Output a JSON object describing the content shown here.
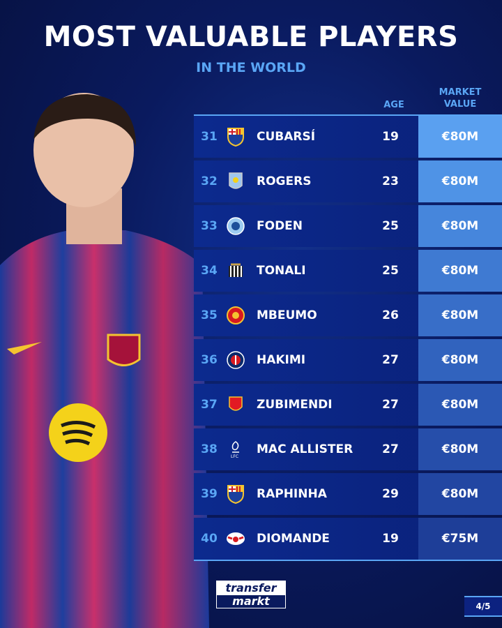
{
  "header": {
    "title": "MOST VALUABLE PLAYERS",
    "subtitle": "IN THE WORLD"
  },
  "columns": {
    "age": "AGE",
    "market_value_line1": "MARKET",
    "market_value_line2": "VALUE"
  },
  "rows": [
    {
      "rank": "31",
      "club": "fc-barcelona",
      "name": "CUBARSÍ",
      "age": "19",
      "value": "€80M",
      "value_color": "#5aa0f0"
    },
    {
      "rank": "32",
      "club": "aston-villa",
      "name": "ROGERS",
      "age": "23",
      "value": "€80M",
      "value_color": "#4f93e6"
    },
    {
      "rank": "33",
      "club": "manchester-city",
      "name": "FODEN",
      "age": "25",
      "value": "€80M",
      "value_color": "#4686dc"
    },
    {
      "rank": "34",
      "club": "newcastle-united",
      "name": "TONALI",
      "age": "25",
      "value": "€80M",
      "value_color": "#3f7ad2"
    },
    {
      "rank": "35",
      "club": "manchester-united",
      "name": "MBEUMO",
      "age": "26",
      "value": "€80M",
      "value_color": "#386ec8"
    },
    {
      "rank": "36",
      "club": "paris-saint-germain",
      "name": "HAKIMI",
      "age": "27",
      "value": "€80M",
      "value_color": "#3163be"
    },
    {
      "rank": "37",
      "club": "arsenal",
      "name": "ZUBIMENDI",
      "age": "27",
      "value": "€80M",
      "value_color": "#2b58b4"
    },
    {
      "rank": "38",
      "club": "liverpool",
      "name": "MAC ALLISTER",
      "age": "27",
      "value": "€80M",
      "value_color": "#264eaa"
    },
    {
      "rank": "39",
      "club": "fc-barcelona",
      "name": "RAPHINHA",
      "age": "29",
      "value": "€80M",
      "value_color": "#2246a2"
    },
    {
      "rank": "40",
      "club": "rb-leipzig",
      "name": "DIOMANDE",
      "age": "19",
      "value": "€75M",
      "value_color": "#1e3e98"
    }
  ],
  "brand": {
    "line1": "transfer",
    "line2": "markt"
  },
  "pagination": "4/5"
}
